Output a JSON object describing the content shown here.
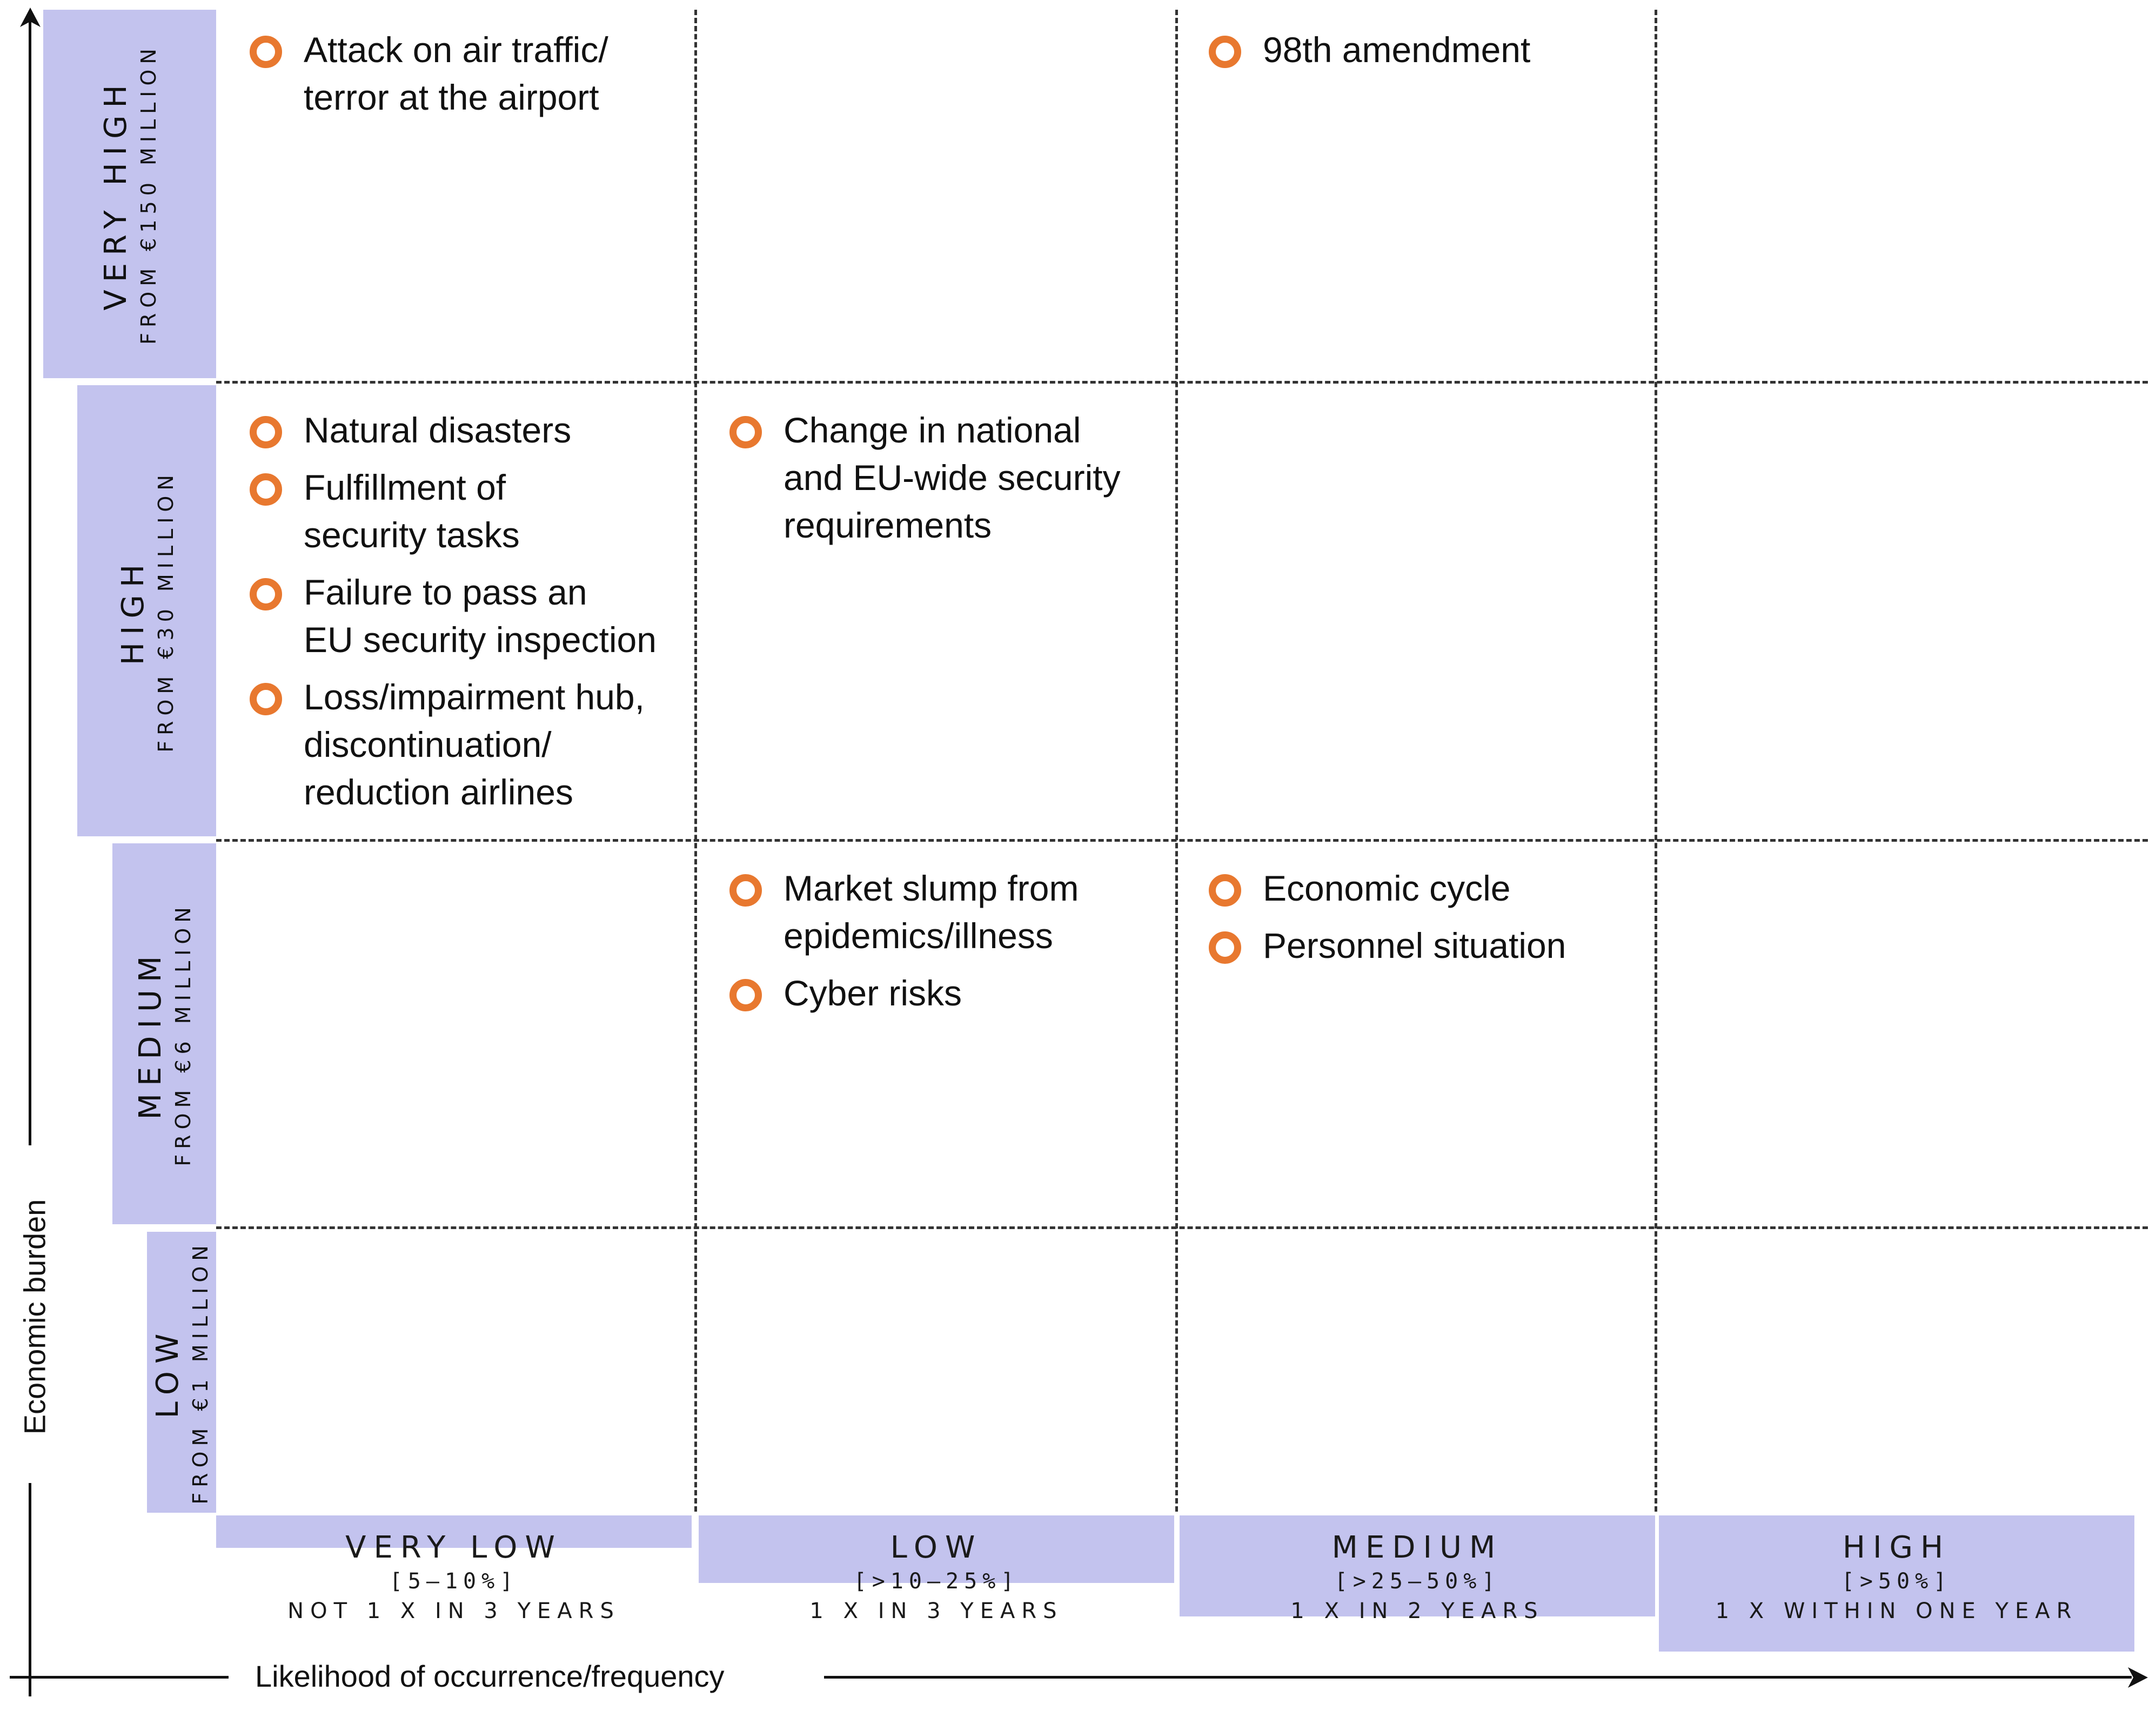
{
  "y_axis": {
    "label": "Economic burden",
    "levels": [
      {
        "title": "VERY HIGH",
        "sub": "FROM €150 MILLION"
      },
      {
        "title": "HIGH",
        "sub": "FROM €30 MILLION"
      },
      {
        "title": "MEDIUM",
        "sub": "FROM €6 MILLION"
      },
      {
        "title": "LOW",
        "sub": "FROM €1 MILLION"
      }
    ]
  },
  "x_axis": {
    "label": "Likelihood of occurrence/frequency",
    "levels": [
      {
        "title": "VERY LOW",
        "range": "[5—10%]",
        "freq": "NOT 1 X IN 3 YEARS"
      },
      {
        "title": "LOW",
        "range": "[>10—25%]",
        "freq": "1 X IN 3 YEARS"
      },
      {
        "title": "MEDIUM",
        "range": "[>25—50%]",
        "freq": "1 X IN 2 YEARS"
      },
      {
        "title": "HIGH",
        "range": "[>50%]",
        "freq": "1 X WITHIN ONE YEAR"
      }
    ]
  },
  "cells": {
    "very_high_very_low": [
      "Attack on air traffic/\nterror at the airport"
    ],
    "very_high_medium": [
      "98th amendment"
    ],
    "high_very_low": [
      "Natural disasters",
      "Fulfillment of\nsecurity tasks",
      "Failure to pass an\nEU security inspection",
      "Loss/impairment hub,\ndiscontinuation/\nreduction airlines"
    ],
    "high_low": [
      "Change in national\nand EU-wide security\nrequirements"
    ],
    "medium_low": [
      "Market slump from\nepidemics/illness",
      "Cyber risks"
    ],
    "medium_medium": [
      "Economic cycle",
      "Personnel situation"
    ]
  },
  "colors": {
    "box_fill": "#c3c3ee",
    "bullet": "#e8782f",
    "grid": "#333333"
  }
}
